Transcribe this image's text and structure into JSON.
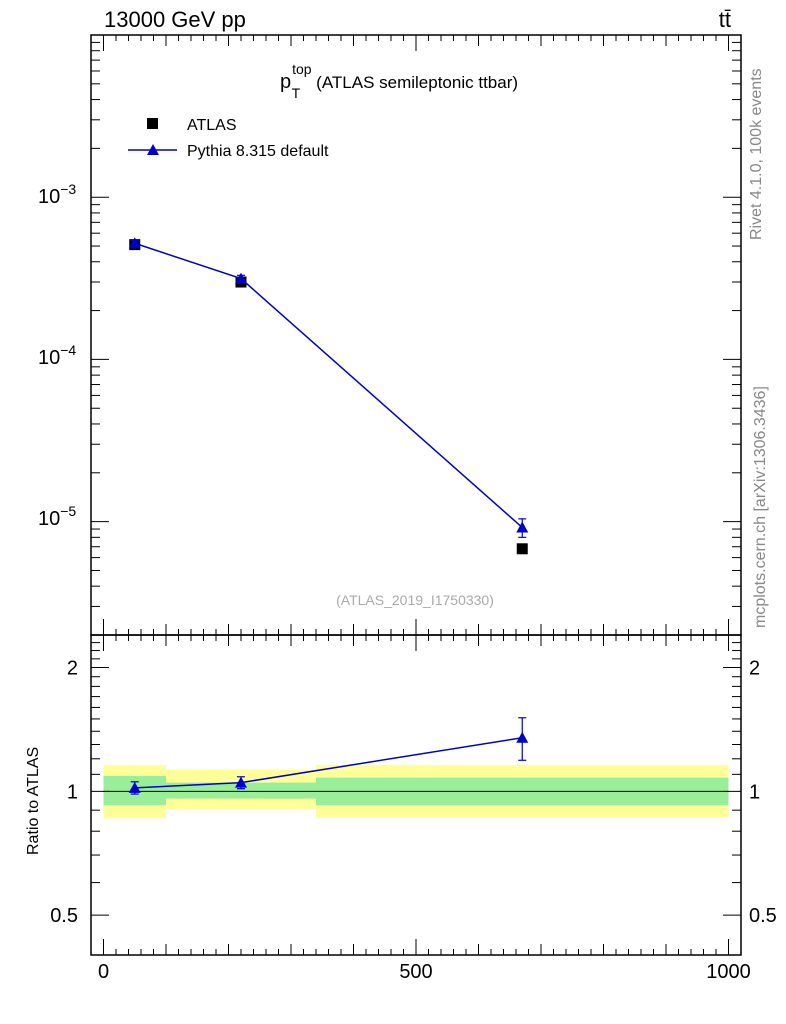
{
  "header": {
    "energy_label": "13000 GeV pp",
    "process_label": "tt̄"
  },
  "side_labels": {
    "rivet": "Rivet 4.1.0,  100k events",
    "mcplots": "mcplots.cern.ch [arXiv:1306.3436]"
  },
  "chart_data": {
    "type": "line",
    "title": "p_T^top (ATLAS semileptonic ttbar)",
    "title_main": "p",
    "title_sup": "top",
    "title_sub": "T",
    "title_rest": "(ATLAS semileptonic ttbar)",
    "analysis_label": "(ATLAS_2019_I1750330)",
    "legend": [
      "ATLAS",
      "Pythia 8.315 default"
    ],
    "legend_position": "top-left",
    "x_range": [
      -20,
      1020
    ],
    "x_ticks": [
      0,
      500,
      1000
    ],
    "x_tick_labels": [
      "0",
      "500",
      "1000"
    ],
    "main": {
      "y_scale": "log",
      "y_range": [
        2e-06,
        0.01
      ],
      "y_tick_labels": [
        {
          "value": 0.001,
          "base": "10",
          "exp": "−3"
        },
        {
          "value": 0.0001,
          "base": "10",
          "exp": "−4"
        },
        {
          "value": 1e-05,
          "base": "10",
          "exp": "−5"
        }
      ],
      "series": [
        {
          "name": "ATLAS",
          "marker": "square",
          "color": "#000000",
          "x": [
            50,
            220,
            670
          ],
          "y": [
            0.00051,
            0.0003,
            6.8e-06
          ]
        },
        {
          "name": "Pythia 8.315 default",
          "marker": "triangle",
          "color": "#0000cc",
          "x": [
            50,
            220,
            670
          ],
          "y": [
            0.00052,
            0.000315,
            9.2e-06
          ],
          "y_err": [
            2e-05,
            1.5e-05,
            1.2e-06
          ]
        }
      ]
    },
    "ratio": {
      "ylabel": "Ratio to ATLAS",
      "y_scale": "log",
      "y_range": [
        0.4,
        2.4
      ],
      "y_ticks": [
        0.5,
        1,
        2
      ],
      "y_tick_labels": [
        "0.5",
        "1",
        "2"
      ],
      "bins": [
        {
          "lo": 0,
          "hi": 100,
          "inner": [
            0.925,
            1.09
          ],
          "outer": [
            0.86,
            1.16
          ]
        },
        {
          "lo": 100,
          "hi": 340,
          "inner": [
            0.96,
            1.05
          ],
          "outer": [
            0.905,
            1.13
          ]
        },
        {
          "lo": 340,
          "hi": 1000,
          "inner": [
            0.925,
            1.08
          ],
          "outer": [
            0.865,
            1.16
          ]
        }
      ],
      "series": {
        "name": "Pythia 8.315 default",
        "color": "#0000cc",
        "x": [
          50,
          220,
          670
        ],
        "y": [
          1.02,
          1.05,
          1.35
        ],
        "y_err": [
          0.035,
          0.035,
          0.16
        ]
      },
      "band_colors": {
        "inner": "#99ee99",
        "outer": "#ffff99"
      }
    }
  }
}
